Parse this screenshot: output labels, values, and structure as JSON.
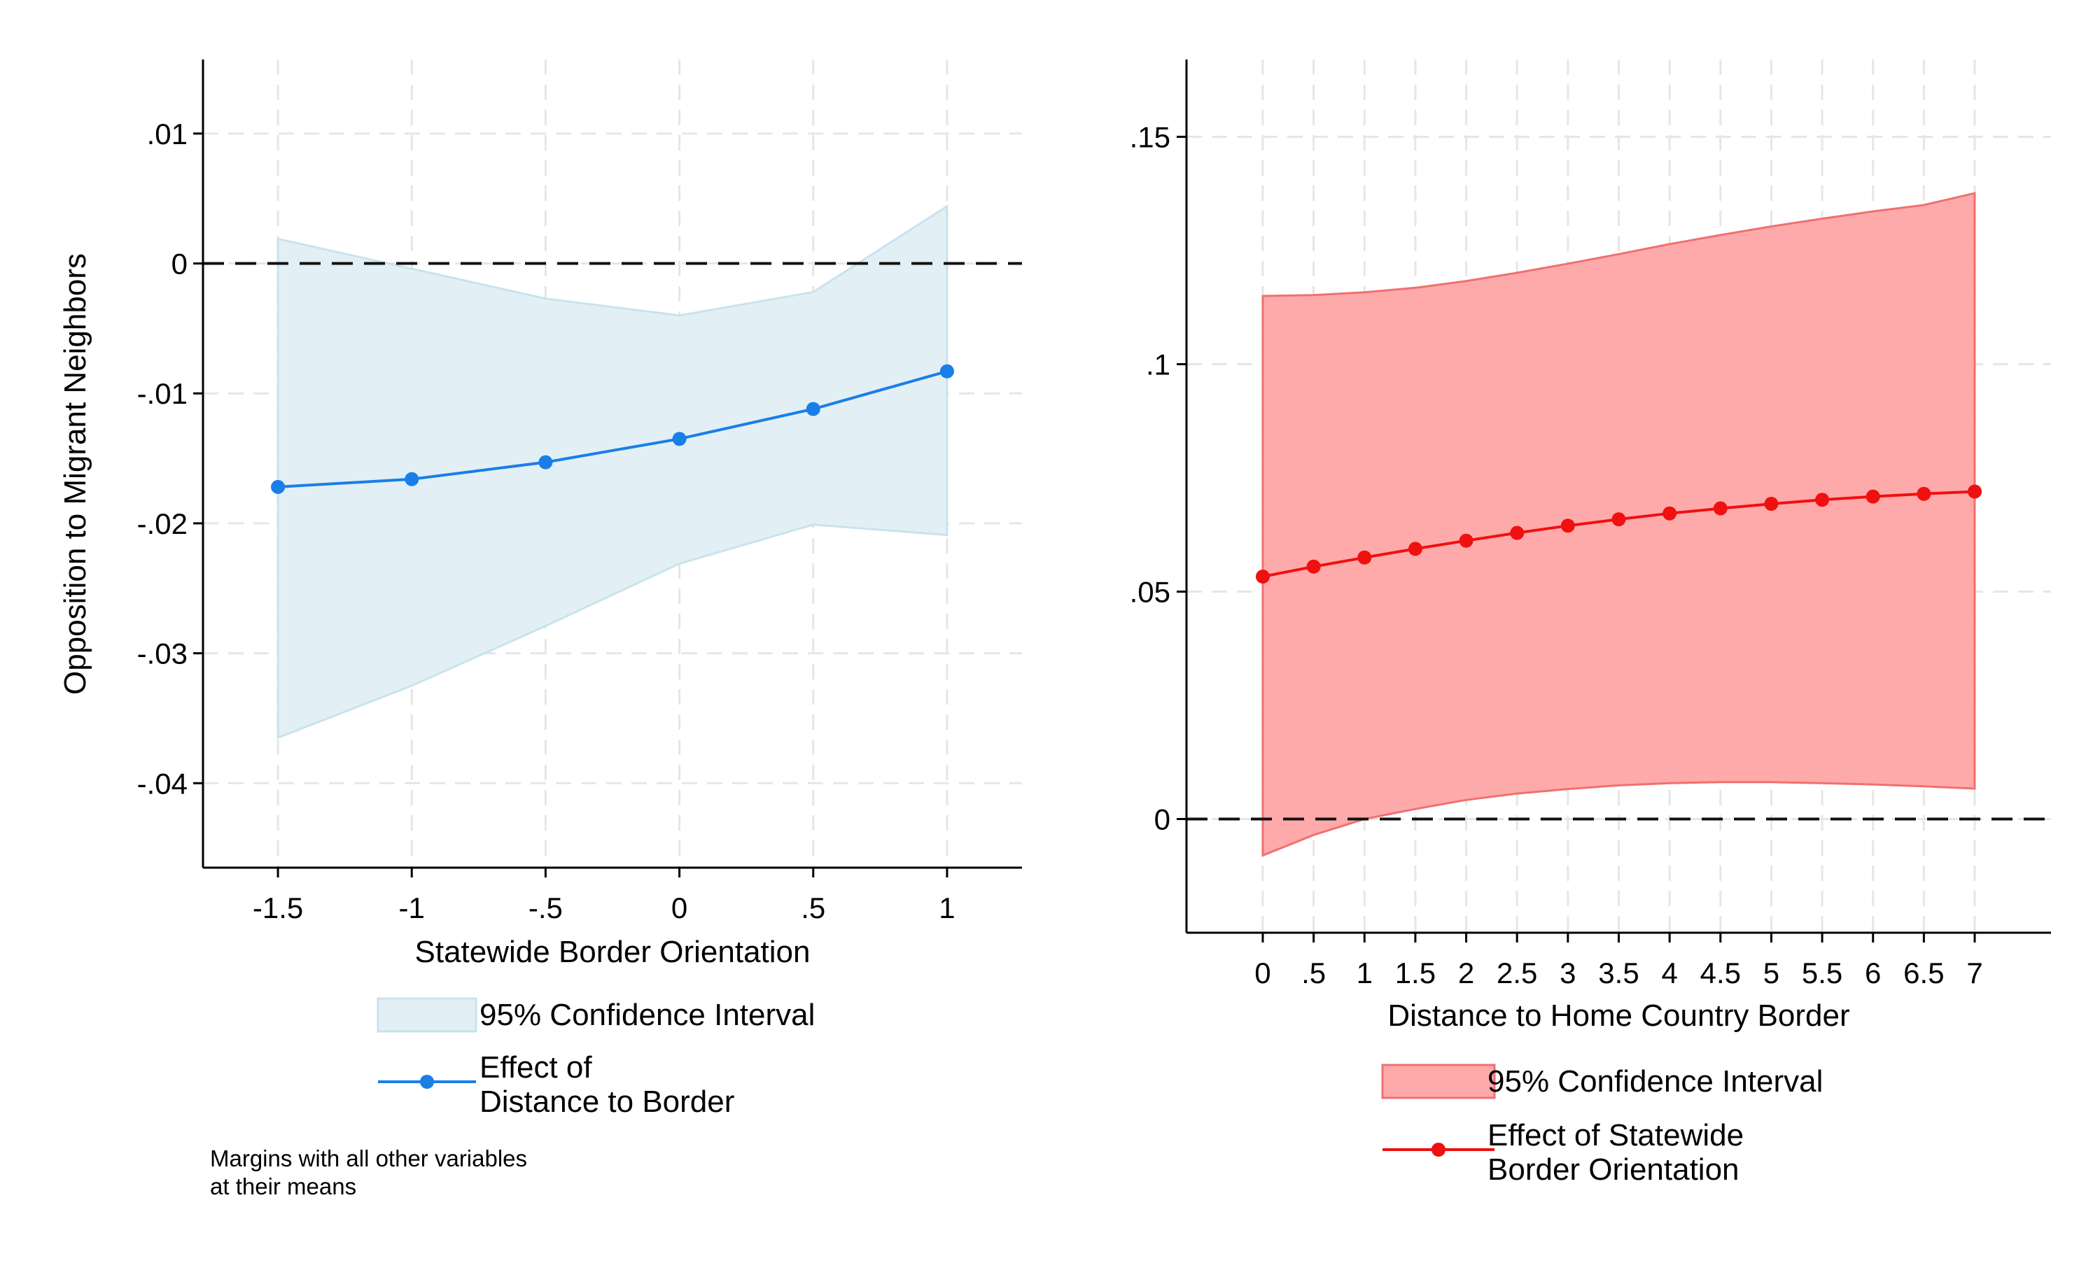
{
  "chart_data": [
    {
      "type": "line",
      "xlabel": "Statewide Border Orientation",
      "ylabel": "Opposition to Migrant Neighbors",
      "xlim": [
        -1.78,
        1.28
      ],
      "ylim": [
        -0.0465,
        0.0157
      ],
      "x_ticks": [
        -1.5,
        -1,
        -0.5,
        0,
        0.5,
        1
      ],
      "x_tick_labels": [
        "-1.5",
        "-1",
        "-.5",
        "0",
        ".5",
        "1"
      ],
      "y_ticks": [
        0.01,
        0,
        -0.01,
        -0.02,
        -0.03,
        -0.04
      ],
      "y_tick_labels": [
        ".01",
        "0",
        "-.01",
        "-.02",
        "-.03",
        "-.04"
      ],
      "reference_line_y": 0,
      "grid": true,
      "colors": {
        "line": "#1a7ee8",
        "band_fill": "#e2f0f5",
        "band_edge": "#c9e3ee"
      },
      "series": [
        {
          "name": "Effect of\nDistance to Border",
          "x": [
            -1.5,
            -1,
            -0.5,
            0,
            0.5,
            1
          ],
          "y": [
            -0.0172,
            -0.0166,
            -0.0153,
            -0.0135,
            -0.0112,
            -0.0083
          ]
        }
      ],
      "ci": {
        "name": "95% Confidence Interval",
        "x": [
          -1.5,
          -1,
          -0.5,
          0,
          0.5,
          1
        ],
        "lower": [
          -0.0365,
          -0.0325,
          -0.0279,
          -0.0231,
          -0.0201,
          -0.0209
        ],
        "upper": [
          0.0019,
          -0.0004,
          -0.0027,
          -0.004,
          -0.0022,
          0.0044
        ]
      },
      "legend": {
        "position": "bottom",
        "items": [
          {
            "kind": "band",
            "label": "95% Confidence Interval"
          },
          {
            "kind": "line",
            "label_lines": [
              "Effect of",
              "Distance to Border"
            ]
          }
        ]
      },
      "note_lines": [
        "Margins with all other variables",
        "at their means"
      ]
    },
    {
      "type": "line",
      "xlabel": "Distance to Home Country Border",
      "ylabel": "",
      "xlim": [
        -0.75,
        7.75
      ],
      "ylim": [
        -0.025,
        0.167
      ],
      "x_ticks": [
        0,
        0.5,
        1,
        1.5,
        2,
        2.5,
        3,
        3.5,
        4,
        4.5,
        5,
        5.5,
        6,
        6.5,
        7
      ],
      "x_tick_labels": [
        "0",
        ".5",
        "1",
        "1.5",
        "2",
        "2.5",
        "3",
        "3.5",
        "4",
        "4.5",
        "5",
        "5.5",
        "6",
        "6.5",
        "7"
      ],
      "y_ticks": [
        0.15,
        0.1,
        0.05,
        0
      ],
      "y_tick_labels": [
        ".15",
        ".1",
        ".05",
        "0"
      ],
      "reference_line_y": 0,
      "grid": true,
      "colors": {
        "line": "#f01010",
        "band_fill": "#ffaaaa",
        "band_edge": "#f07070"
      },
      "series": [
        {
          "name": "Effect of Statewide\nBorder Orientation",
          "x": [
            0,
            0.5,
            1,
            1.5,
            2,
            2.5,
            3,
            3.5,
            4,
            4.5,
            5,
            5.5,
            6,
            6.5,
            7
          ],
          "y": [
            0.0533,
            0.0555,
            0.0575,
            0.0594,
            0.0612,
            0.0629,
            0.0645,
            0.0659,
            0.0672,
            0.0683,
            0.0693,
            0.0702,
            0.0709,
            0.0715,
            0.072
          ]
        }
      ],
      "ci": {
        "name": "95% Confidence Interval",
        "x": [
          0,
          0.5,
          1,
          1.5,
          2,
          2.5,
          3,
          3.5,
          4,
          4.5,
          5,
          5.5,
          6,
          6.5,
          7
        ],
        "lower": [
          -0.008,
          -0.0035,
          0.0,
          0.0022,
          0.0042,
          0.0056,
          0.0066,
          0.0074,
          0.0079,
          0.0081,
          0.0081,
          0.0079,
          0.0076,
          0.0072,
          0.0067
        ],
        "upper": [
          0.115,
          0.1152,
          0.1158,
          0.1168,
          0.1183,
          0.1201,
          0.1221,
          0.1242,
          0.1264,
          0.1284,
          0.1303,
          0.132,
          0.1336,
          0.135,
          0.1376
        ]
      },
      "legend": {
        "position": "bottom",
        "items": [
          {
            "kind": "band",
            "label": "95% Confidence Interval"
          },
          {
            "kind": "line",
            "label_lines": [
              "Effect of Statewide",
              "Border Orientation"
            ]
          }
        ]
      }
    }
  ]
}
